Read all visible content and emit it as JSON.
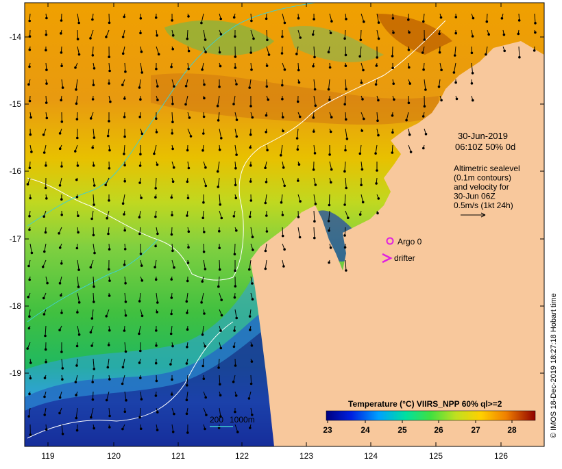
{
  "map": {
    "lon_ticks": [
      "119",
      "120",
      "121",
      "122",
      "123",
      "124",
      "125",
      "126"
    ],
    "lat_ticks": [
      "-14",
      "-15",
      "-16",
      "-17",
      "-18",
      "-19"
    ],
    "date_line1": "30-Jun-2019",
    "date_line2": "06:10Z  50% 0d",
    "altimetry_lines": [
      "Altimetric sealevel",
      "(0.1m contours)",
      "and velocity for",
      "30-Jun 06Z",
      "0.5m/s (1kt 24h)"
    ],
    "argo_label": "Argo 0",
    "drifter_label": "drifter",
    "depth_label_200": "200",
    "depth_label_1000": "1000m",
    "credit": "© IMOS 18-Dec-2019 18:27:18 Hobart time",
    "colorbar_title": "Temperature (°C) VIIRS_NPP 60% ql>=2",
    "colorbar_ticks": [
      "23",
      "24",
      "25",
      "26",
      "27",
      "28"
    ],
    "colors": {
      "land": "#f8c89c",
      "argo_marker": "#e020e0",
      "drifter_marker": "#e020e0",
      "depth_200": "#ffffff",
      "depth_1000": "#40d0d0"
    }
  }
}
